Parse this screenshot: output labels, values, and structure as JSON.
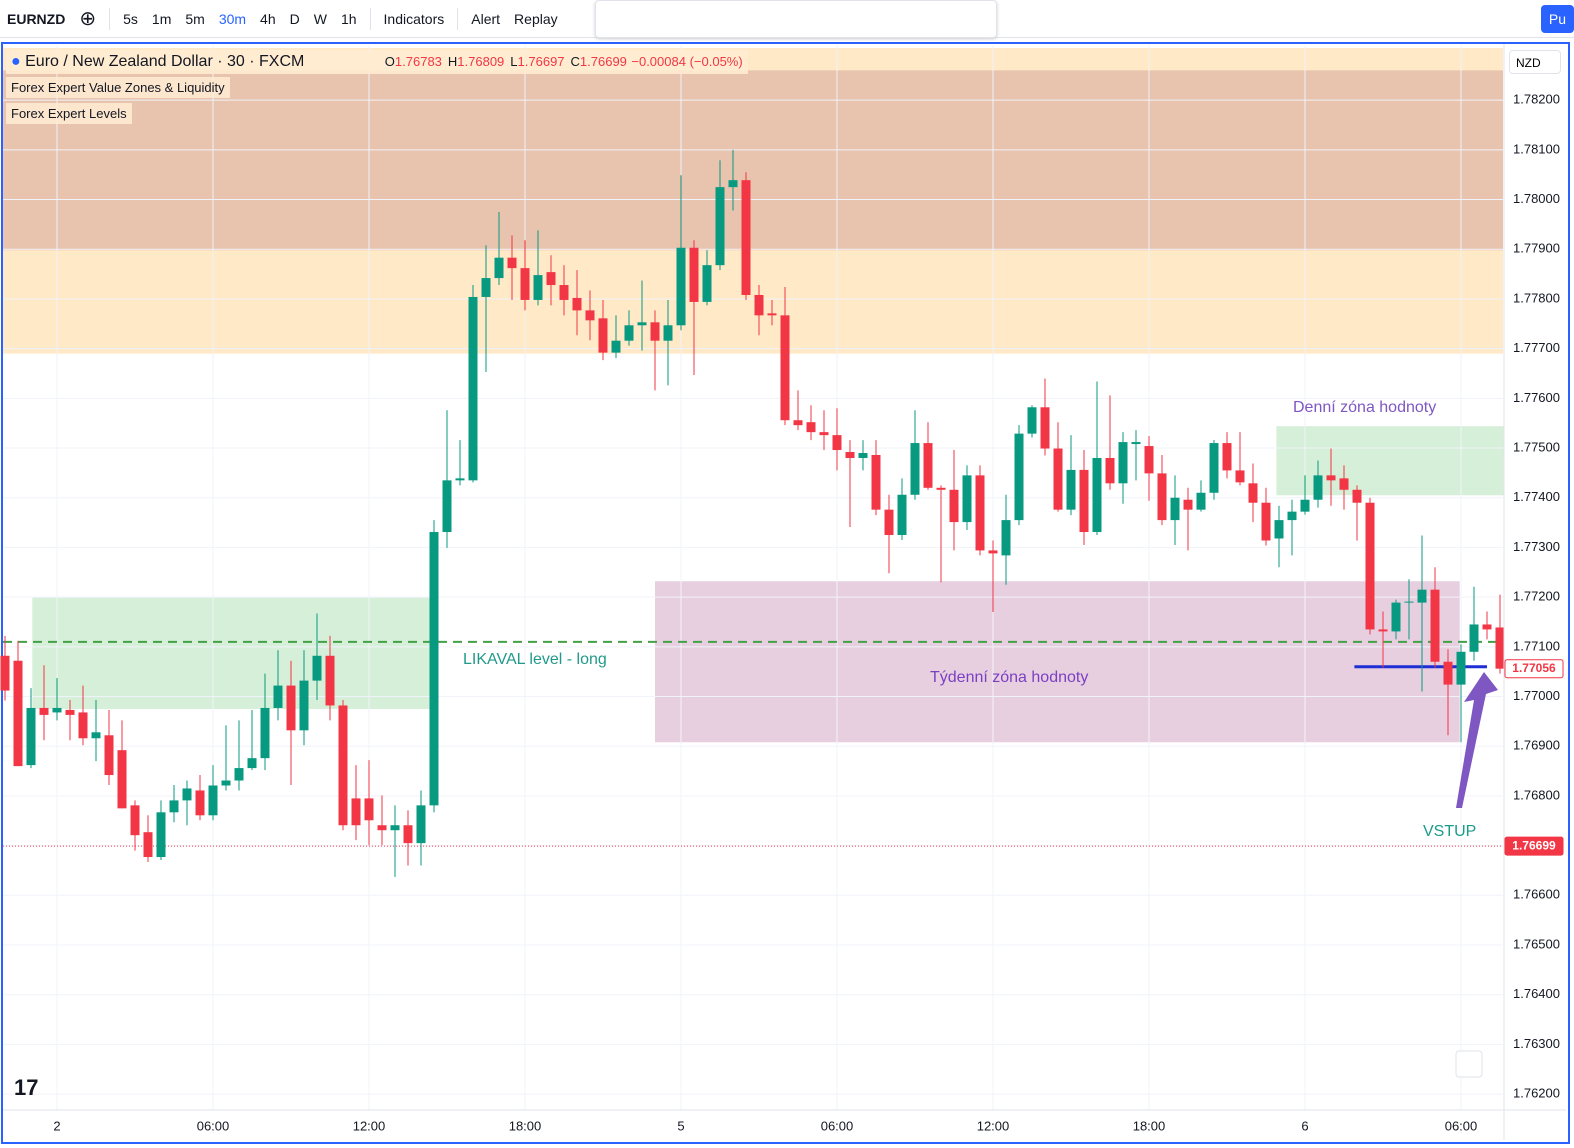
{
  "toolbar": {
    "symbol": "EURNZD",
    "intervals": [
      "5s",
      "1m",
      "5m",
      "30m",
      "4h",
      "D",
      "W",
      "1h"
    ],
    "indicators": "Indicators",
    "alert": "Alert",
    "replay": "Replay",
    "publish": "Pu"
  },
  "legend": {
    "title": "Euro / New Zealand Dollar · 30 · FXCM",
    "ohlc": [
      [
        "O",
        "1.76783"
      ],
      [
        "H",
        "1.76809"
      ],
      [
        "L",
        "1.76697"
      ],
      [
        "C",
        "1.76699"
      ]
    ],
    "change": "−0.00084 (−0.05%)"
  },
  "indicators": [
    "Forex Expert Value Zones & Liquidity",
    "Forex Expert Levels"
  ],
  "currency": "NZD",
  "chart_data": {
    "type": "candlestick",
    "up_color": "#089981",
    "down_color": "#f23645",
    "categories": [
      null,
      null,
      null,
      null,
      "2",
      null,
      null,
      null,
      null,
      null,
      null,
      null,
      null,
      null,
      null,
      null,
      "06:00",
      null,
      null,
      null,
      null,
      null,
      null,
      null,
      null,
      null,
      null,
      null,
      "12:00",
      null,
      null,
      null,
      null,
      null,
      null,
      null,
      null,
      null,
      null,
      null,
      "18:00",
      null,
      null,
      null,
      null,
      null,
      null,
      null,
      null,
      null,
      null,
      null,
      "5",
      null,
      null,
      null,
      null,
      null,
      null,
      null,
      null,
      null,
      null,
      null,
      "06:00",
      null,
      null,
      null,
      null,
      null,
      null,
      null,
      null,
      null,
      null,
      null,
      "12:00",
      null,
      null,
      null,
      null,
      null,
      null,
      null,
      null,
      null,
      null,
      null,
      "18:00",
      null,
      null,
      null,
      null,
      null,
      null,
      null,
      null,
      null,
      null,
      null,
      "6",
      null,
      null,
      null,
      null,
      null,
      null,
      null,
      null,
      null,
      null,
      null,
      "06:00",
      null,
      null,
      null
    ],
    "open": [
      1.77082,
      1.77072,
      1.76862,
      1.76977,
      1.76968,
      1.76973,
      1.76968,
      1.76916,
      1.76922,
      1.76892,
      1.76781,
      1.76727,
      1.76677,
      1.76767,
      1.76791,
      1.76811,
      1.76761,
      1.76821,
      1.76831,
      1.76856,
      1.76876,
      1.76977,
      1.77022,
      1.76932,
      1.77032,
      1.77082,
      1.76982,
      1.76795,
      1.76795,
      1.76741,
      1.76731,
      1.76741,
      1.76705,
      1.76781,
      1.77331,
      1.77435,
      1.77435,
      1.77804,
      1.77842,
      1.77883,
      1.77862,
      1.77798,
      1.77854,
      1.77828,
      1.77802,
      1.77777,
      1.77761,
      1.77692,
      1.77716,
      1.77747,
      1.77753,
      1.77716,
      1.77747,
      1.77903,
      1.77794,
      1.77868,
      1.78025,
      1.78039,
      1.77808,
      1.77771,
      1.77767,
      1.77556,
      1.77552,
      1.77532,
      1.77526,
      1.77492,
      1.7748,
      1.77486,
      1.77376,
      1.77325,
      1.77406,
      1.7751,
      1.7742,
      1.77416,
      1.77351,
      1.77445,
      1.77294,
      1.77284,
      1.77355,
      1.77529,
      1.77582,
      1.77499,
      1.77376,
      1.77456,
      1.77331,
      1.7748,
      1.77429,
      1.77508,
      1.77504,
      1.77449,
      1.77355,
      1.77396,
      1.77376,
      1.7741,
      1.7751,
      1.77455,
      1.77429,
      1.7739,
      1.77318,
      1.77355,
      1.77372,
      1.77396,
      1.77445,
      1.77439,
      1.77416,
      1.7739,
      1.77135,
      1.77131,
      1.77189,
      1.77189,
      1.77215,
      1.7707,
      1.77024,
      1.7709,
      1.77145,
      1.77139
    ],
    "high": [
      1.77122,
      1.77112,
      1.77017,
      1.77063,
      1.77037,
      1.76993,
      1.77022,
      1.76993,
      1.76973,
      1.76952,
      1.76791,
      1.76761,
      1.76791,
      1.76822,
      1.76831,
      1.76842,
      1.76862,
      1.76942,
      1.76952,
      1.76973,
      1.77046,
      1.77093,
      1.77072,
      1.77093,
      1.77167,
      1.77122,
      1.76993,
      1.76862,
      1.76872,
      1.76801,
      1.76781,
      1.76771,
      1.76811,
      1.77355,
      1.77576,
      1.77516,
      1.77828,
      1.77908,
      1.77975,
      1.77928,
      1.77918,
      1.77938,
      1.77888,
      1.77868,
      1.77858,
      1.77817,
      1.77798,
      1.77767,
      1.77777,
      1.77837,
      1.77777,
      1.77798,
      1.78049,
      1.77918,
      1.77898,
      1.78079,
      1.781,
      1.78055,
      1.77828,
      1.77798,
      1.77824,
      1.77616,
      1.77586,
      1.77576,
      1.7758,
      1.77516,
      1.77516,
      1.77516,
      1.77406,
      1.77439,
      1.77576,
      1.77552,
      1.77425,
      1.77496,
      1.77465,
      1.77465,
      1.77314,
      1.77406,
      1.77546,
      1.77586,
      1.7764,
      1.77552,
      1.77526,
      1.77496,
      1.77634,
      1.77606,
      1.77532,
      1.77536,
      1.77524,
      1.77486,
      1.77445,
      1.7742,
      1.77435,
      1.77516,
      1.77532,
      1.77532,
      1.77469,
      1.7742,
      1.77384,
      1.77396,
      1.77445,
      1.77475,
      1.77499,
      1.77465,
      1.77425,
      1.774,
      1.77171,
      1.77195,
      1.77236,
      1.77324,
      1.7726,
      1.77095,
      1.77105,
      1.77221,
      1.77171,
      1.77205
    ],
    "low": [
      1.76992,
      1.7686,
      1.76856,
      1.76912,
      1.76952,
      1.76912,
      1.76902,
      1.7687,
      1.76822,
      1.76775,
      1.7669,
      1.76667,
      1.76671,
      1.76747,
      1.76741,
      1.76751,
      1.76751,
      1.76811,
      1.76811,
      1.76852,
      1.76852,
      1.76952,
      1.76822,
      1.76902,
      1.76993,
      1.76952,
      1.76731,
      1.76711,
      1.76701,
      1.76701,
      1.76637,
      1.7666,
      1.7666,
      1.76767,
      1.77299,
      1.77425,
      1.77431,
      1.77653,
      1.77828,
      1.77798,
      1.77777,
      1.77787,
      1.77787,
      1.77767,
      1.77727,
      1.77717,
      1.77677,
      1.77681,
      1.77706,
      1.77696,
      1.77616,
      1.77626,
      1.77737,
      1.77647,
      1.77787,
      1.77858,
      1.77978,
      1.77798,
      1.77727,
      1.77747,
      1.77546,
      1.77536,
      1.77516,
      1.77496,
      1.77455,
      1.77341,
      1.77455,
      1.77365,
      1.77248,
      1.77315,
      1.77396,
      1.77416,
      1.7723,
      1.77294,
      1.77335,
      1.77284,
      1.7717,
      1.77225,
      1.77345,
      1.77521,
      1.77485,
      1.77372,
      1.77365,
      1.77305,
      1.77325,
      1.77416,
      1.77388,
      1.77435,
      1.77394,
      1.77345,
      1.77305,
      1.77294,
      1.77372,
      1.77396,
      1.77439,
      1.77425,
      1.77351,
      1.77304,
      1.7726,
      1.77284,
      1.77366,
      1.7738,
      1.77384,
      1.77376,
      1.77314,
      1.77125,
      1.77058,
      1.77115,
      1.77115,
      1.7701,
      1.77058,
      1.76922,
      1.76908,
      1.77072,
      1.77115,
      1.77046
    ],
    "close": [
      1.77012,
      1.7686,
      1.76977,
      1.76963,
      1.76977,
      1.76963,
      1.76916,
      1.76928,
      1.76842,
      1.76775,
      1.76721,
      1.76677,
      1.76767,
      1.76791,
      1.76815,
      1.76761,
      1.76821,
      1.76831,
      1.76856,
      1.76876,
      1.76977,
      1.77022,
      1.76932,
      1.77032,
      1.77082,
      1.76982,
      1.76741,
      1.76741,
      1.76751,
      1.76731,
      1.76741,
      1.76705,
      1.76781,
      1.77331,
      1.77435,
      1.77439,
      1.77804,
      1.77842,
      1.77883,
      1.77862,
      1.77798,
      1.77848,
      1.77828,
      1.77798,
      1.77777,
      1.77757,
      1.77692,
      1.77716,
      1.77747,
      1.77753,
      1.77716,
      1.77747,
      1.77903,
      1.77794,
      1.77868,
      1.78025,
      1.78039,
      1.77808,
      1.77767,
      1.77767,
      1.77556,
      1.77546,
      1.77532,
      1.77526,
      1.77496,
      1.7748,
      1.7749,
      1.77376,
      1.77325,
      1.77406,
      1.7751,
      1.7742,
      1.77416,
      1.77351,
      1.77445,
      1.77294,
      1.77288,
      1.77355,
      1.77529,
      1.77582,
      1.77499,
      1.77376,
      1.77456,
      1.77331,
      1.7748,
      1.77429,
      1.77512,
      1.77512,
      1.77449,
      1.77355,
      1.774,
      1.77376,
      1.7741,
      1.7751,
      1.77455,
      1.77431,
      1.7739,
      1.77314,
      1.77355,
      1.77372,
      1.77396,
      1.77445,
      1.77435,
      1.77416,
      1.7739,
      1.77135,
      1.77131,
      1.77189,
      1.77191,
      1.77215,
      1.7707,
      1.77024,
      1.7709,
      1.77145,
      1.77135,
      1.77056
    ],
    "ylim": [
      1.76168,
      1.78311
    ],
    "yticks": [
      {
        "value": 1.762,
        "label": "1.76200"
      },
      {
        "value": 1.763,
        "label": "1.76300"
      },
      {
        "value": 1.764,
        "label": "1.76400"
      },
      {
        "value": 1.765,
        "label": "1.76500"
      },
      {
        "value": 1.766,
        "label": "1.76600"
      },
      {
        "value": 1.767,
        "label": "1.76700"
      },
      {
        "value": 1.768,
        "label": "1.76800"
      },
      {
        "value": 1.769,
        "label": "1.76900"
      },
      {
        "value": 1.77,
        "label": "1.77000"
      },
      {
        "value": 1.771,
        "label": "1.77100"
      },
      {
        "value": 1.772,
        "label": "1.77200"
      },
      {
        "value": 1.773,
        "label": "1.77300"
      },
      {
        "value": 1.774,
        "label": "1.77400"
      },
      {
        "value": 1.775,
        "label": "1.77500"
      },
      {
        "value": 1.776,
        "label": "1.77600"
      },
      {
        "value": 1.777,
        "label": "1.77700"
      },
      {
        "value": 1.778,
        "label": "1.77800"
      },
      {
        "value": 1.779,
        "label": "1.77900"
      },
      {
        "value": 1.78,
        "label": "1.78000"
      },
      {
        "value": 1.781,
        "label": "1.78100"
      },
      {
        "value": 1.782,
        "label": "1.78200"
      }
    ],
    "grid": true,
    "zones": [
      {
        "top": 1.78305,
        "bottom": 1.7769,
        "color": "#ffe9c7"
      },
      {
        "top": 1.7826,
        "bottom": 1.77898,
        "color": "#e8c3ad"
      },
      {
        "top": 1.77199,
        "bottom": 1.76975,
        "start": 2.1,
        "end": 32.7,
        "color": "#d6efd8"
      },
      {
        "top": 1.77232,
        "bottom": 1.76908,
        "start": 50,
        "end": 111.9,
        "color": "#e7cfdf"
      },
      {
        "top": 1.77544,
        "bottom": 1.77405,
        "start": 97.8,
        "end": 115.3,
        "color": "#d6efd8"
      }
    ],
    "lines": [
      {
        "value": 1.7711,
        "color": "#43a047",
        "style": "dashed"
      },
      {
        "value": 1.76699,
        "color": "#f23645",
        "style": "dotted"
      },
      {
        "value": 1.7706,
        "start": 103.8,
        "end": 114,
        "color": "#1e2fd6",
        "style": "solid"
      }
    ],
    "price_labels": [
      {
        "value": 1.77056,
        "label": "1.77056",
        "style": "outline"
      },
      {
        "value": 1.76699,
        "label": "1.76699",
        "style": "filled"
      }
    ],
    "annotations": [
      "LIKAVAL level - long",
      "Týdenní zóna hodnoty",
      "Denní zóna hodnoty",
      "VSTUP"
    ]
  }
}
